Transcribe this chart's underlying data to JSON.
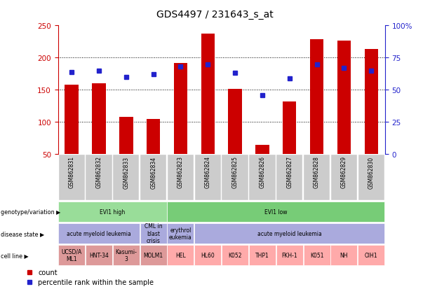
{
  "title": "GDS4497 / 231643_s_at",
  "samples": [
    "GSM862831",
    "GSM862832",
    "GSM862833",
    "GSM862834",
    "GSM862823",
    "GSM862824",
    "GSM862825",
    "GSM862826",
    "GSM862827",
    "GSM862828",
    "GSM862829",
    "GSM862830"
  ],
  "bar_values": [
    158,
    160,
    108,
    105,
    192,
    237,
    152,
    65,
    132,
    229,
    226,
    213
  ],
  "percentile_values": [
    64,
    65,
    60,
    62,
    68,
    70,
    63,
    46,
    59,
    70,
    67,
    65
  ],
  "ymin": 50,
  "ymax": 250,
  "yticks_left": [
    50,
    100,
    150,
    200,
    250
  ],
  "yticks_right": [
    0,
    25,
    50,
    75,
    100
  ],
  "bar_color": "#cc0000",
  "dot_color": "#2222cc",
  "bar_width": 0.5,
  "genotype_groups": [
    {
      "text": "EVI1 high",
      "start": 0,
      "end": 4,
      "color": "#99dd99"
    },
    {
      "text": "EVI1 low",
      "start": 4,
      "end": 12,
      "color": "#77cc77"
    }
  ],
  "disease_groups": [
    {
      "text": "acute myeloid leukemia",
      "start": 0,
      "end": 3,
      "color": "#aaaadd"
    },
    {
      "text": "CML in\nblast\ncrisis",
      "start": 3,
      "end": 4,
      "color": "#aaaadd"
    },
    {
      "text": "erythrol\neukemia",
      "start": 4,
      "end": 5,
      "color": "#aaaadd"
    },
    {
      "text": "acute myeloid leukemia",
      "start": 5,
      "end": 12,
      "color": "#aaaadd"
    }
  ],
  "cellline_groups": [
    {
      "text": "UCSD/A\nML1",
      "start": 0,
      "end": 1,
      "color": "#dd9999"
    },
    {
      "text": "HNT-34",
      "start": 1,
      "end": 2,
      "color": "#dd9999"
    },
    {
      "text": "Kasumi-\n3",
      "start": 2,
      "end": 3,
      "color": "#dd9999"
    },
    {
      "text": "MOLM1",
      "start": 3,
      "end": 4,
      "color": "#dd9999"
    },
    {
      "text": "HEL",
      "start": 4,
      "end": 5,
      "color": "#ffaaaa"
    },
    {
      "text": "HL60",
      "start": 5,
      "end": 6,
      "color": "#ffaaaa"
    },
    {
      "text": "K052",
      "start": 6,
      "end": 7,
      "color": "#ffaaaa"
    },
    {
      "text": "THP1",
      "start": 7,
      "end": 8,
      "color": "#ffaaaa"
    },
    {
      "text": "FKH-1",
      "start": 8,
      "end": 9,
      "color": "#ffaaaa"
    },
    {
      "text": "K051",
      "start": 9,
      "end": 10,
      "color": "#ffaaaa"
    },
    {
      "text": "NH",
      "start": 10,
      "end": 11,
      "color": "#ffaaaa"
    },
    {
      "text": "OIH1",
      "start": 11,
      "end": 12,
      "color": "#ffaaaa"
    }
  ],
  "row_labels": [
    "genotype/variation",
    "disease state",
    "cell line"
  ],
  "legend_count_label": "count",
  "legend_pct_label": "percentile rank within the sample",
  "left_tick_color": "#cc0000",
  "right_tick_color": "#2222cc",
  "bg_color": "#ffffff",
  "sample_label_bg": "#cccccc",
  "grid_dotted_vals": [
    100,
    150,
    200
  ],
  "pct_scale_min": 50,
  "pct_scale_range": 200
}
